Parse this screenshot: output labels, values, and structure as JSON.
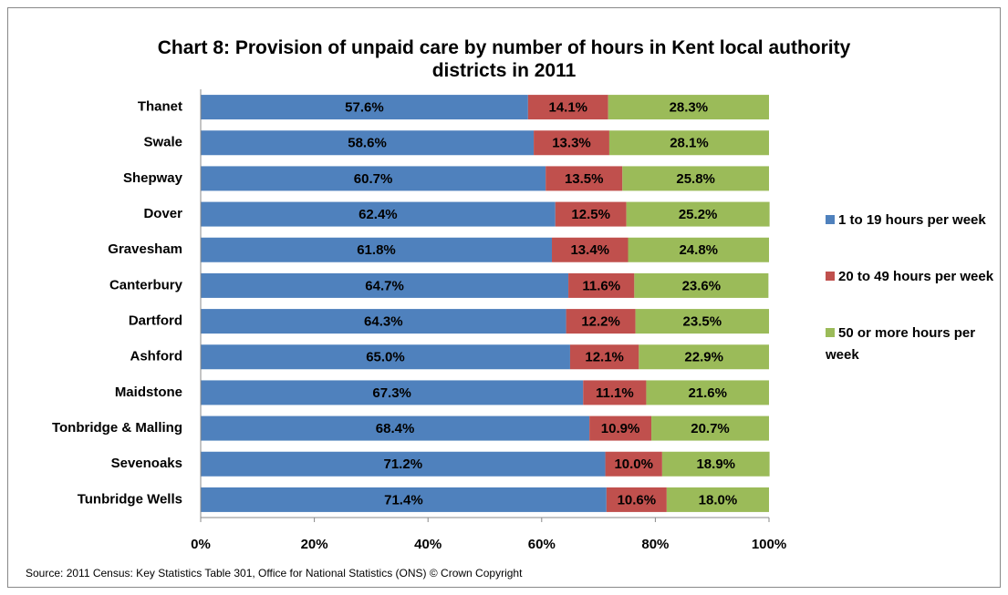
{
  "chart_data": {
    "type": "stacked-barh",
    "title": "Chart 8: Provision of unpaid care by number of hours in Kent local authority districts in 2011",
    "source": "Source: 2011 Census: Key Statistics Table 301, Office for National Statistics (ONS) © Crown Copyright",
    "categories": [
      "Thanet",
      "Swale",
      "Shepway",
      "Dover",
      "Gravesham",
      "Canterbury",
      "Dartford",
      "Ashford",
      "Maidstone",
      "Tonbridge & Malling",
      "Sevenoaks",
      "Tunbridge Wells"
    ],
    "series": [
      {
        "name": "1 to 19 hours per week",
        "color": "#4f81bd",
        "values": [
          57.6,
          58.6,
          60.7,
          62.4,
          61.8,
          64.7,
          64.3,
          65.0,
          67.3,
          68.4,
          71.2,
          71.4
        ],
        "value_labels": [
          "57.6%",
          "58.6%",
          "60.7%",
          "62.4%",
          "61.8%",
          "64.7%",
          "64.3%",
          "65.0%",
          "67.3%",
          "68.4%",
          "71.2%",
          "71.4%"
        ]
      },
      {
        "name": "20 to 49 hours per week",
        "color": "#c0504d",
        "values": [
          14.1,
          13.3,
          13.5,
          12.5,
          13.4,
          11.6,
          12.2,
          12.1,
          11.1,
          10.9,
          10.0,
          10.6
        ],
        "value_labels": [
          "14.1%",
          "13.3%",
          "13.5%",
          "12.5%",
          "13.4%",
          "11.6%",
          "12.2%",
          "12.1%",
          "11.1%",
          "10.9%",
          "10.0%",
          "10.6%"
        ]
      },
      {
        "name": "50 or more hours per week",
        "color": "#9bbb59",
        "values": [
          28.3,
          28.1,
          25.8,
          25.2,
          24.8,
          23.6,
          23.5,
          22.9,
          21.6,
          20.7,
          18.9,
          18.0
        ],
        "value_labels": [
          "28.3%",
          "28.1%",
          "25.8%",
          "25.2%",
          "24.8%",
          "23.6%",
          "23.5%",
          "22.9%",
          "21.6%",
          "20.7%",
          "18.9%",
          "18.0%"
        ]
      }
    ],
    "xlim": [
      0,
      100
    ],
    "xticks": [
      {
        "value": 0,
        "label": "0%"
      },
      {
        "value": 20,
        "label": "20%"
      },
      {
        "value": 40,
        "label": "40%"
      },
      {
        "value": 60,
        "label": "60%"
      },
      {
        "value": 80,
        "label": "80%"
      },
      {
        "value": 100,
        "label": "100%"
      }
    ],
    "legend": "right"
  }
}
